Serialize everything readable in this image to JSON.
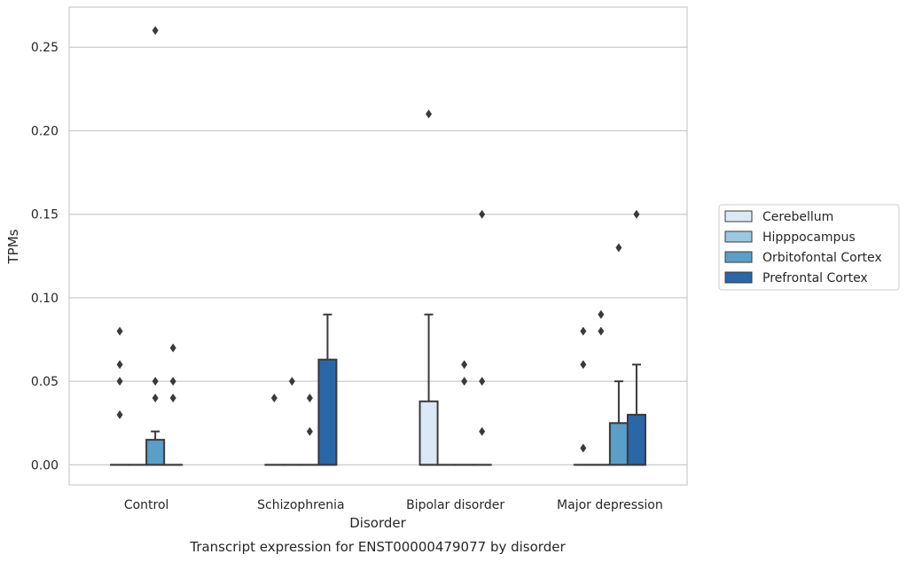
{
  "chart_data": {
    "type": "box",
    "title": "",
    "caption": "Transcript expression for ENST00000479077 by disorder",
    "xlabel": "Disorder",
    "ylabel": "TPMs",
    "ylim": [
      -0.012,
      0.274
    ],
    "yticks": [
      "0.00",
      "0.05",
      "0.10",
      "0.15",
      "0.20",
      "0.25"
    ],
    "ytick_values": [
      0,
      0.05,
      0.1,
      0.15,
      0.2,
      0.25
    ],
    "grid": "horizontal",
    "legend_position": "right",
    "categories": [
      "Control",
      "Schizophrenia",
      "Bipolar disorder",
      "Major depression"
    ],
    "series": [
      {
        "name": "Cerebellum",
        "color": "#dbe9f6",
        "boxes": [
          {
            "q1": 0,
            "median": 0,
            "q3": 0,
            "whisker_low": 0,
            "whisker_high": 0,
            "outliers": [
              0.03,
              0.05,
              0.06,
              0.08
            ]
          },
          {
            "q1": 0,
            "median": 0,
            "q3": 0,
            "whisker_low": 0,
            "whisker_high": 0,
            "outliers": [
              0.04
            ]
          },
          {
            "q1": 0,
            "median": 0,
            "q3": 0.038,
            "whisker_low": 0,
            "whisker_high": 0.09,
            "outliers": [
              0.21
            ]
          },
          {
            "q1": 0,
            "median": 0,
            "q3": 0,
            "whisker_low": 0,
            "whisker_high": 0,
            "outliers": [
              0.01,
              0.06,
              0.08
            ]
          }
        ]
      },
      {
        "name": "Hipppocampus",
        "color": "#9ac8e0",
        "boxes": [
          {
            "q1": 0,
            "median": 0,
            "q3": 0,
            "whisker_low": 0,
            "whisker_high": 0,
            "outliers": []
          },
          {
            "q1": 0,
            "median": 0,
            "q3": 0,
            "whisker_low": 0,
            "whisker_high": 0,
            "outliers": [
              0.05
            ]
          },
          {
            "q1": 0,
            "median": 0,
            "q3": 0,
            "whisker_low": 0,
            "whisker_high": 0,
            "outliers": []
          },
          {
            "q1": 0,
            "median": 0,
            "q3": 0,
            "whisker_low": 0,
            "whisker_high": 0,
            "outliers": [
              0.08,
              0.09
            ]
          }
        ]
      },
      {
        "name": "Orbitofontal Cortex",
        "color": "#5a9ec9",
        "boxes": [
          {
            "q1": 0,
            "median": 0,
            "q3": 0.015,
            "whisker_low": 0,
            "whisker_high": 0.02,
            "outliers": [
              0.04,
              0.05,
              0.26
            ]
          },
          {
            "q1": 0,
            "median": 0,
            "q3": 0,
            "whisker_low": 0,
            "whisker_high": 0,
            "outliers": [
              0.02,
              0.04
            ]
          },
          {
            "q1": 0,
            "median": 0,
            "q3": 0,
            "whisker_low": 0,
            "whisker_high": 0,
            "outliers": [
              0.05,
              0.06
            ]
          },
          {
            "q1": 0,
            "median": 0,
            "q3": 0.025,
            "whisker_low": 0,
            "whisker_high": 0.05,
            "outliers": [
              0.13
            ]
          }
        ]
      },
      {
        "name": "Prefrontal Cortex",
        "color": "#2967a8",
        "boxes": [
          {
            "q1": 0,
            "median": 0,
            "q3": 0,
            "whisker_low": 0,
            "whisker_high": 0,
            "outliers": [
              0.04,
              0.05,
              0.07
            ]
          },
          {
            "q1": 0,
            "median": 0,
            "q3": 0.063,
            "whisker_low": 0,
            "whisker_high": 0.09,
            "outliers": []
          },
          {
            "q1": 0,
            "median": 0,
            "q3": 0,
            "whisker_low": 0,
            "whisker_high": 0,
            "outliers": [
              0.02,
              0.05,
              0.15
            ]
          },
          {
            "q1": 0,
            "median": 0,
            "q3": 0.03,
            "whisker_low": 0,
            "whisker_high": 0.06,
            "outliers": [
              0.15
            ]
          }
        ]
      }
    ]
  }
}
